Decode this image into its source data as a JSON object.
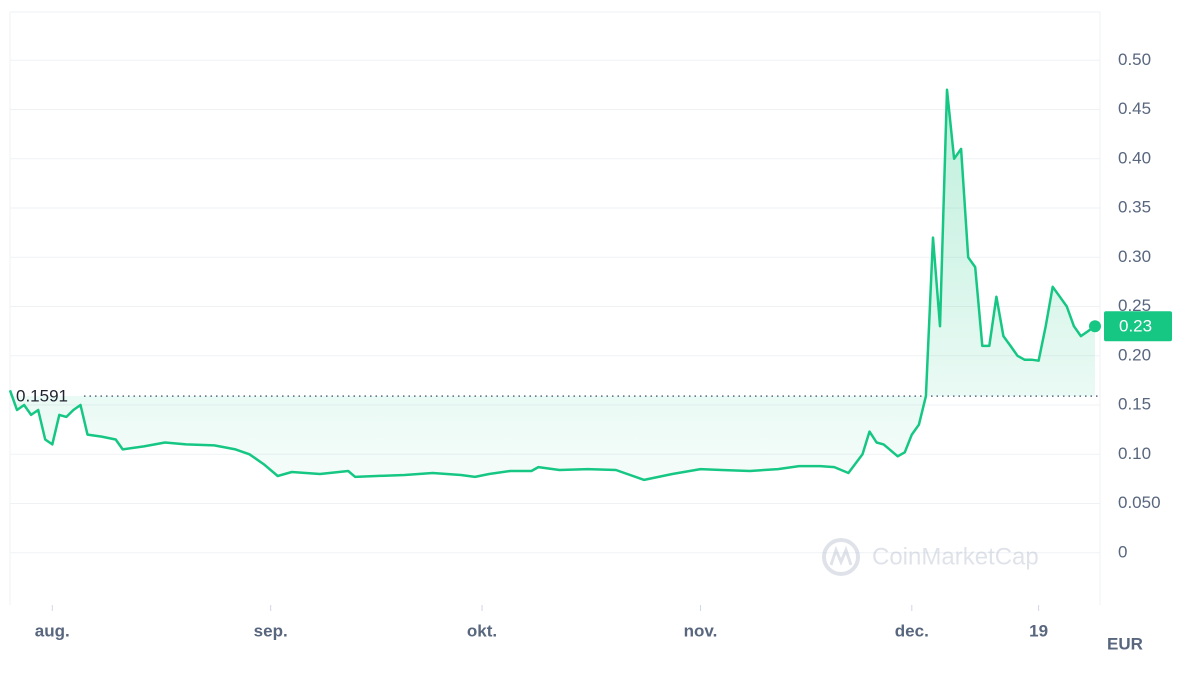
{
  "chart_data": {
    "type": "line",
    "x": [
      "07-26",
      "07-27",
      "07-28",
      "07-29",
      "07-30",
      "07-31",
      "08-01",
      "08-02",
      "08-03",
      "08-04",
      "08-05",
      "08-06",
      "08-08",
      "08-10",
      "08-11",
      "08-14",
      "08-17",
      "08-20",
      "08-24",
      "08-27",
      "08-29",
      "08-31",
      "09-02",
      "09-04",
      "09-08",
      "09-12",
      "09-13",
      "09-16",
      "09-20",
      "09-24",
      "09-28",
      "09-30",
      "10-02",
      "10-05",
      "10-08",
      "10-09",
      "10-12",
      "10-16",
      "10-20",
      "10-24",
      "10-28",
      "11-01",
      "11-04",
      "11-08",
      "11-12",
      "11-15",
      "11-18",
      "11-20",
      "11-22",
      "11-24",
      "11-25",
      "11-26",
      "11-27",
      "11-29",
      "11-30",
      "12-01",
      "12-02",
      "12-03",
      "12-04",
      "12-05",
      "12-06",
      "12-07",
      "12-08",
      "12-09",
      "12-10",
      "12-11",
      "12-12",
      "12-13",
      "12-14",
      "12-15",
      "12-16",
      "12-17",
      "12-18",
      "12-19",
      "12-20",
      "12-21",
      "12-22",
      "12-23",
      "12-24",
      "12-25",
      "12-26",
      "12-27"
    ],
    "series": [
      {
        "values": [
          0.165,
          0.145,
          0.15,
          0.14,
          0.145,
          0.115,
          0.11,
          0.14,
          0.138,
          0.145,
          0.15,
          0.12,
          0.118,
          0.115,
          0.105,
          0.108,
          0.112,
          0.11,
          0.109,
          0.105,
          0.1,
          0.09,
          0.078,
          0.082,
          0.08,
          0.083,
          0.077,
          0.078,
          0.079,
          0.081,
          0.079,
          0.077,
          0.08,
          0.083,
          0.083,
          0.087,
          0.084,
          0.085,
          0.084,
          0.074,
          0.08,
          0.085,
          0.084,
          0.083,
          0.085,
          0.088,
          0.088,
          0.087,
          0.081,
          0.1,
          0.123,
          0.112,
          0.11,
          0.098,
          0.102,
          0.12,
          0.13,
          0.159,
          0.32,
          0.23,
          0.47,
          0.4,
          0.41,
          0.3,
          0.29,
          0.21,
          0.21,
          0.26,
          0.22,
          0.21,
          0.2,
          0.196,
          0.196,
          0.195,
          0.23,
          0.27,
          0.26,
          0.25,
          0.23,
          0.22,
          0.225,
          0.23
        ],
        "color_up": "#16c784",
        "color_down": "#ea3943"
      }
    ],
    "reference": 0.1591,
    "last_value_label": "0.23",
    "xlim": [
      "07-26",
      "12-27"
    ],
    "xticks": [
      {
        "value": "08-01",
        "label": "aug."
      },
      {
        "value": "09-01",
        "label": "sep."
      },
      {
        "value": "10-01",
        "label": "okt."
      },
      {
        "value": "11-01",
        "label": "nov."
      },
      {
        "value": "12-01",
        "label": "dec."
      },
      {
        "value": "12-19",
        "label": "19"
      }
    ],
    "ylim": [
      -0.053,
      0.549
    ],
    "yticks": [
      0,
      {
        "value": 0.05,
        "label": "0.050"
      },
      {
        "value": 0.1,
        "label": "0.10"
      },
      0.15,
      {
        "value": 0.2,
        "label": "0.20"
      },
      0.25,
      {
        "value": 0.3,
        "label": "0.30"
      },
      0.35,
      {
        "value": 0.4,
        "label": "0.40"
      },
      0.45,
      {
        "value": 0.5,
        "label": "0.50"
      }
    ],
    "currency": "EUR",
    "watermark": "CoinMarketCap",
    "grid": true
  }
}
